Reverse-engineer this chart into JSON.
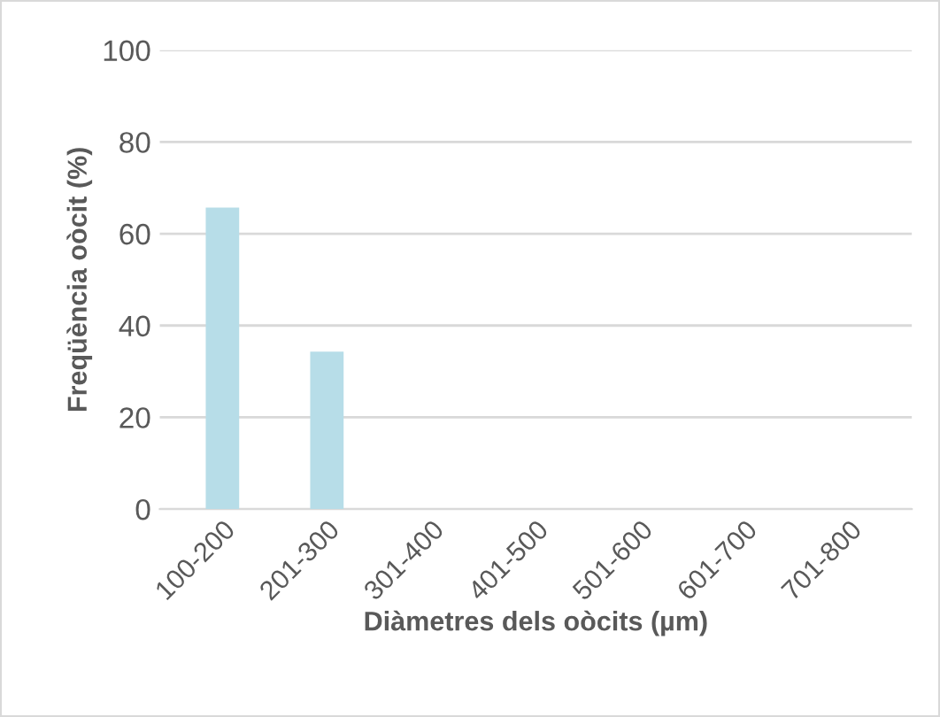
{
  "chart_data": {
    "type": "bar",
    "xlabel": "Diàmetres dels oòcits (µm)",
    "ylabel": "Freqüència oòcit (%)",
    "categories": [
      "100-200",
      "201-300",
      "301-400",
      "401-500",
      "501-600",
      "601-700",
      "701-800"
    ],
    "values": [
      65.7,
      34.3,
      0,
      0,
      0,
      0,
      0
    ],
    "color": "#b7dde8",
    "ylim": [
      0,
      100
    ],
    "yticks": [
      0,
      20,
      40,
      60,
      80,
      100
    ],
    "grid": "y"
  }
}
